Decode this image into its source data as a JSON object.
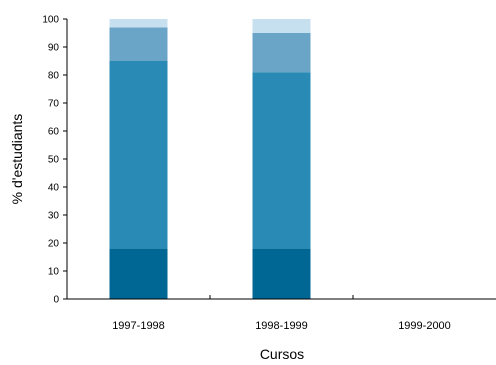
{
  "chart_data": {
    "type": "bar",
    "stacked": true,
    "categories": [
      "1997-1998",
      "1998-1999",
      "1999-2000"
    ],
    "series": [
      {
        "values": [
          18,
          18,
          null
        ],
        "color": "#006795"
      },
      {
        "values": [
          67,
          63,
          null
        ],
        "color": "#2a8ab6"
      },
      {
        "values": [
          12,
          14,
          null
        ],
        "color": "#6aa5c8"
      },
      {
        "values": [
          3,
          5,
          null
        ],
        "color": "#c7e0f0"
      }
    ],
    "xlabel": "Cursos",
    "ylabel": "% d'estudiants",
    "ylim": [
      0,
      100
    ],
    "yticks": [
      0,
      10,
      20,
      30,
      40,
      50,
      60,
      70,
      80,
      90,
      100
    ],
    "grid": false,
    "legend": false
  }
}
